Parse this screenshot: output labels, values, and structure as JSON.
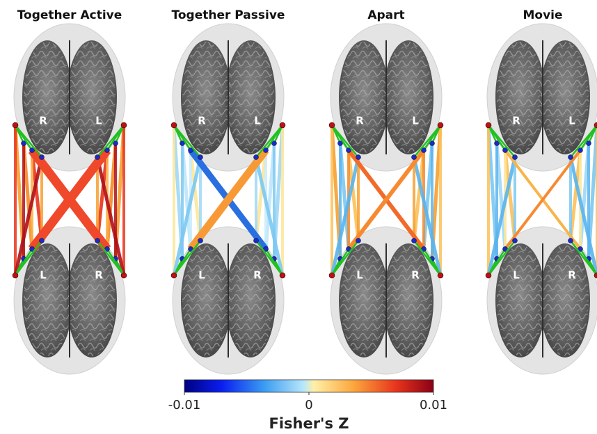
{
  "panels": [
    {
      "title": "Together Active",
      "top_labels": [
        "R",
        "L"
      ],
      "bottom_labels": [
        "L",
        "R"
      ]
    },
    {
      "title": "Together Passive",
      "top_labels": [
        "R",
        "L"
      ],
      "bottom_labels": [
        "L",
        "R"
      ]
    },
    {
      "title": "Apart",
      "top_labels": [
        "R",
        "L"
      ],
      "bottom_labels": [
        "L",
        "R"
      ]
    },
    {
      "title": "Movie",
      "top_labels": [
        "R",
        "L"
      ],
      "bottom_labels": [
        "L",
        "R"
      ]
    }
  ],
  "colorbar": {
    "label": "Fisher's Z",
    "lim": [
      -0.01,
      0.01
    ],
    "ticks": [
      -0.01,
      0,
      0.01
    ]
  }
}
